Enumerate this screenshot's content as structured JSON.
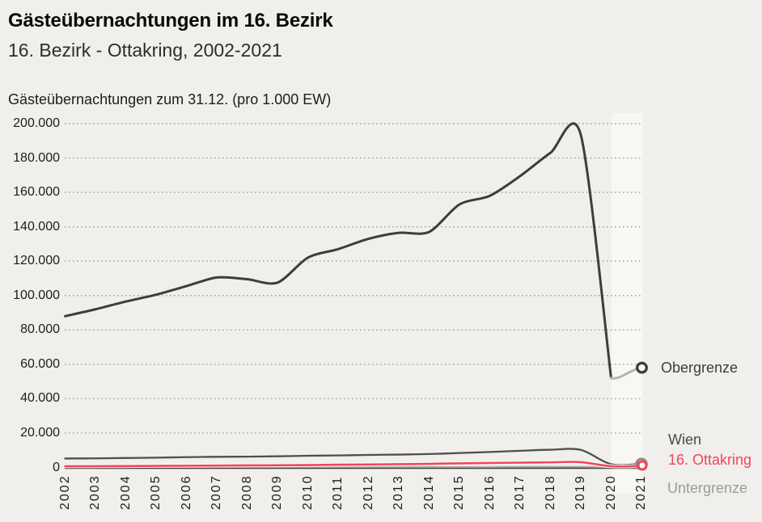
{
  "header": {
    "title": "Gästeübernachtungen im 16. Bezirk",
    "subtitle": "16. Bezirk - Ottakring, 2002-2021"
  },
  "chart": {
    "axis_title": "Gästeübernachtungen zum 31.12. (pro 1.000 EW)",
    "y_tick_labels": [
      "200.000",
      "180.000",
      "160.000",
      "140.000",
      "120.000",
      "100.000",
      "80.000",
      "60.000",
      "40.000",
      "20.000",
      "0"
    ],
    "x_tick_labels": [
      "2002",
      "2003",
      "2004",
      "2005",
      "2006",
      "2007",
      "2008",
      "2009",
      "2010",
      "2011",
      "2012",
      "2013",
      "2014",
      "2015",
      "2016",
      "2017",
      "2018",
      "2019",
      "2020",
      "2021"
    ]
  },
  "legend": {
    "obergrenze": {
      "label": "Obergrenze",
      "color": "#3d3d3b"
    },
    "wien": {
      "label": "Wien",
      "color": "#4a4a48"
    },
    "ottakring": {
      "label": "16. Ottakring",
      "color": "#f3455a"
    },
    "untergrenze": {
      "label": "Untergrenze",
      "color": "#9c9c9a"
    }
  },
  "colors": {
    "background": "#f0efec",
    "highlight_band": "#f8f7f4",
    "gridline": "#a29f9c",
    "baseline": "#41403e",
    "obergrenze_final_segment": "#b5b4b1",
    "marker_fill": "#fbfaf8"
  },
  "chart_data": {
    "type": "line",
    "title": "Gästeübernachtungen im 16. Bezirk",
    "subtitle": "16. Bezirk - Ottakring, 2002-2021",
    "ylabel": "Gästeübernachtungen zum 31.12. (pro 1.000 EW)",
    "ylim": [
      0,
      200000
    ],
    "grid": "horizontal-dotted",
    "legend_position": "right-end-labels",
    "highlight_band_years": [
      2020,
      2021
    ],
    "x": [
      2002,
      2003,
      2004,
      2005,
      2006,
      2007,
      2008,
      2009,
      2010,
      2011,
      2012,
      2013,
      2014,
      2015,
      2016,
      2017,
      2018,
      2019,
      2020,
      2021
    ],
    "series": [
      {
        "name": "Obergrenze",
        "color": "#3d3d3b",
        "values": [
          88000,
          92000,
          96500,
          100500,
          105500,
          110500,
          109500,
          107500,
          122000,
          127000,
          133000,
          136500,
          137000,
          153000,
          158000,
          169500,
          183000,
          193500,
          52000,
          58000
        ]
      },
      {
        "name": "Wien",
        "color": "#4f4f4d",
        "values": [
          5200,
          5300,
          5500,
          5700,
          6000,
          6200,
          6300,
          6500,
          6800,
          7000,
          7300,
          7500,
          7800,
          8400,
          9000,
          9700,
          10300,
          10200,
          1900,
          2100
        ]
      },
      {
        "name": "16. Ottakring",
        "color": "#f3455a",
        "values": [
          700,
          750,
          800,
          900,
          1000,
          1100,
          1200,
          1250,
          1400,
          1600,
          1750,
          1900,
          2100,
          2400,
          2600,
          2800,
          3000,
          3100,
          700,
          900
        ]
      },
      {
        "name": "Untergrenze",
        "color": "#aeaeac",
        "values": [
          300,
          300,
          300,
          300,
          300,
          300,
          300,
          300,
          300,
          300,
          300,
          300,
          300,
          300,
          300,
          400,
          400,
          400,
          200,
          300
        ]
      }
    ]
  }
}
